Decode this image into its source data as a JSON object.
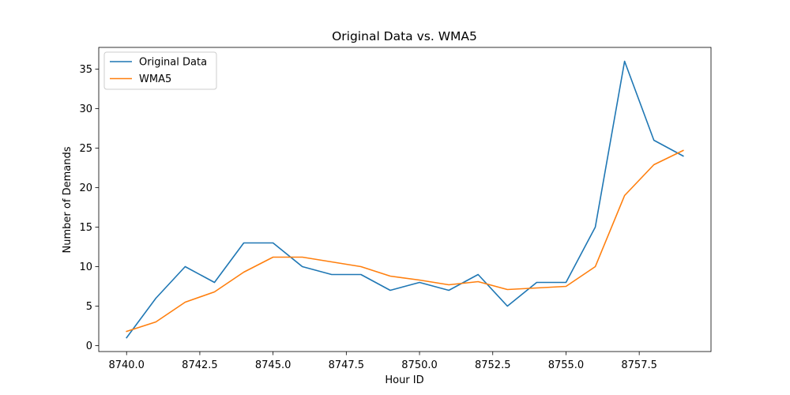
{
  "chart_data": {
    "type": "line",
    "title": "Original Data vs. WMA5",
    "xlabel": "Hour ID",
    "ylabel": "Number of Demands",
    "xlim": [
      8739.05,
      8759.95
    ],
    "ylim": [
      -0.75,
      37.75
    ],
    "xticks": [
      {
        "value": 8740.0,
        "label": "8740.0"
      },
      {
        "value": 8742.5,
        "label": "8742.5"
      },
      {
        "value": 8745.0,
        "label": "8745.0"
      },
      {
        "value": 8747.5,
        "label": "8747.5"
      },
      {
        "value": 8750.0,
        "label": "8750.0"
      },
      {
        "value": 8752.5,
        "label": "8752.5"
      },
      {
        "value": 8755.0,
        "label": "8755.0"
      },
      {
        "value": 8757.5,
        "label": "8757.5"
      }
    ],
    "yticks": [
      {
        "value": 0,
        "label": "0"
      },
      {
        "value": 5,
        "label": "5"
      },
      {
        "value": 10,
        "label": "10"
      },
      {
        "value": 15,
        "label": "15"
      },
      {
        "value": 20,
        "label": "20"
      },
      {
        "value": 25,
        "label": "25"
      },
      {
        "value": 30,
        "label": "30"
      },
      {
        "value": 35,
        "label": "35"
      }
    ],
    "grid": false,
    "legend_position": "top-left",
    "x": [
      8740,
      8741,
      8742,
      8743,
      8744,
      8745,
      8746,
      8747,
      8748,
      8749,
      8750,
      8751,
      8752,
      8753,
      8754,
      8755,
      8756,
      8757,
      8758,
      8759
    ],
    "series": [
      {
        "name": "Original Data",
        "color": "#1f77b4",
        "values": [
          1,
          6,
          10,
          8,
          13,
          13,
          10,
          9,
          9,
          7,
          8,
          7,
          9,
          5,
          8,
          8,
          15,
          36,
          26,
          24
        ]
      },
      {
        "name": "WMA5",
        "color": "#ff7f0e",
        "values": [
          1.8,
          3.0,
          5.5,
          6.8,
          9.3,
          11.2,
          11.2,
          10.6,
          10.0,
          8.8,
          8.3,
          7.7,
          8.1,
          7.1,
          7.3,
          7.5,
          10.0,
          19.0,
          22.9,
          24.7
        ]
      }
    ]
  }
}
